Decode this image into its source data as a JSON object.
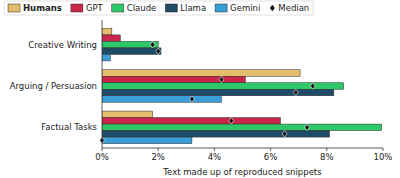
{
  "chart_data": {
    "type": "bar",
    "orientation": "horizontal",
    "grid": false,
    "legend": "top",
    "categories": [
      "Creative Writing",
      "Arguing / Persuasion",
      "Factual Tasks"
    ],
    "xlabel": "Text made up of reproduced snippets",
    "xlim": [
      0,
      10
    ],
    "xticks": [
      {
        "value": 0,
        "label": "0%"
      },
      {
        "value": 2,
        "label": "2%"
      },
      {
        "value": 4,
        "label": "4%"
      },
      {
        "value": 6,
        "label": "6%"
      },
      {
        "value": 8,
        "label": "8%"
      },
      {
        "value": 10,
        "label": "10%"
      }
    ],
    "median_label": "Median",
    "series": [
      {
        "name": "Humans",
        "color": "#e3bd6b",
        "values": [
          0.35,
          7.05,
          1.8
        ],
        "medians": [
          null,
          null,
          null
        ]
      },
      {
        "name": "GPT",
        "color": "#c9264a",
        "values": [
          0.65,
          5.1,
          6.35
        ],
        "medians": [
          null,
          4.25,
          4.6
        ]
      },
      {
        "name": "Claude",
        "color": "#2fc868",
        "values": [
          2.0,
          8.6,
          9.95
        ],
        "medians": [
          1.8,
          7.5,
          7.3
        ]
      },
      {
        "name": "Llama",
        "color": "#1e4c68",
        "values": [
          2.1,
          8.25,
          8.1
        ],
        "medians": [
          2.0,
          6.9,
          6.5
        ]
      },
      {
        "name": "Gemini",
        "color": "#3a9fd8",
        "values": [
          0.3,
          4.25,
          3.2
        ],
        "medians": [
          null,
          3.2,
          0
        ]
      }
    ]
  }
}
